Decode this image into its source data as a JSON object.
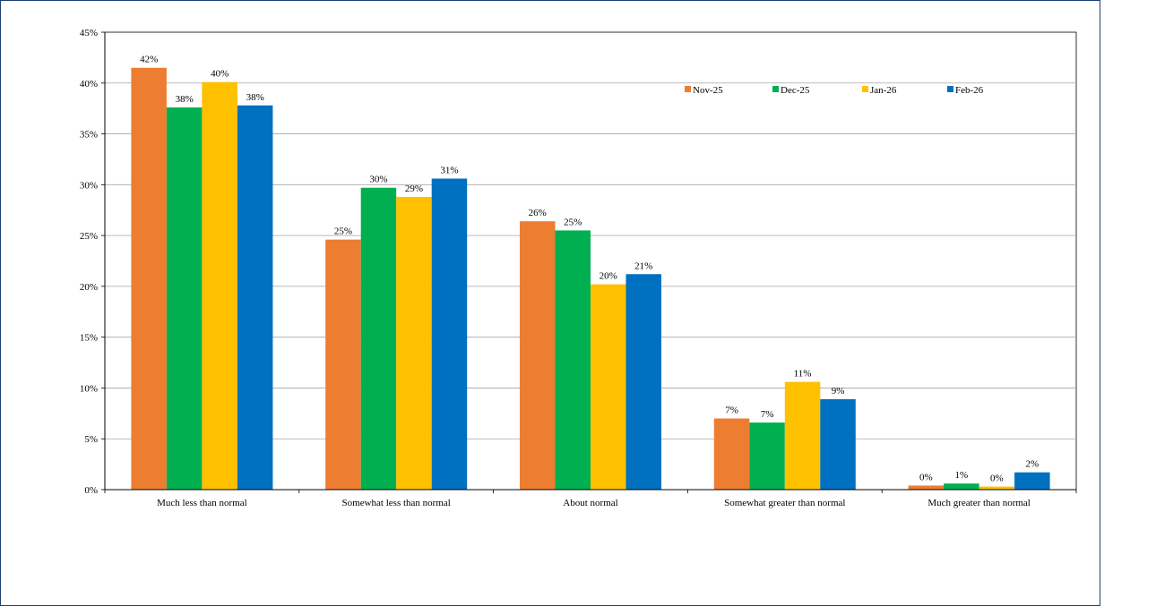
{
  "chart_data": {
    "type": "bar",
    "categories": [
      "Much less than normal",
      "Somewhat less than normal",
      "About normal",
      "Somewhat greater than normal",
      "Much greater than normal"
    ],
    "series": [
      {
        "name": "Nov-25",
        "color": "#ED7D31",
        "values": [
          41.5,
          24.6,
          26.4,
          7.0,
          0.4
        ],
        "labels": [
          "42%",
          "25%",
          "26%",
          "7%",
          "0%"
        ]
      },
      {
        "name": "Dec-25",
        "color": "#00B050",
        "values": [
          37.6,
          29.7,
          25.5,
          6.6,
          0.6
        ],
        "labels": [
          "38%",
          "30%",
          "25%",
          "7%",
          "1%"
        ]
      },
      {
        "name": "Jan-26",
        "color": "#FFC000",
        "values": [
          40.1,
          28.8,
          20.2,
          10.6,
          0.3
        ],
        "labels": [
          "40%",
          "29%",
          "20%",
          "11%",
          "0%"
        ]
      },
      {
        "name": "Feb-26",
        "color": "#0070C0",
        "values": [
          37.8,
          30.6,
          21.2,
          8.9,
          1.7
        ],
        "labels": [
          "38%",
          "31%",
          "21%",
          "9%",
          "2%"
        ]
      }
    ],
    "ylim": [
      0,
      45
    ],
    "yticks": [
      "0%",
      "5%",
      "10%",
      "15%",
      "20%",
      "25%",
      "30%",
      "35%",
      "40%",
      "45%"
    ],
    "grid": true,
    "legend": "top-right",
    "title": "",
    "xlabel": "",
    "ylabel": ""
  }
}
